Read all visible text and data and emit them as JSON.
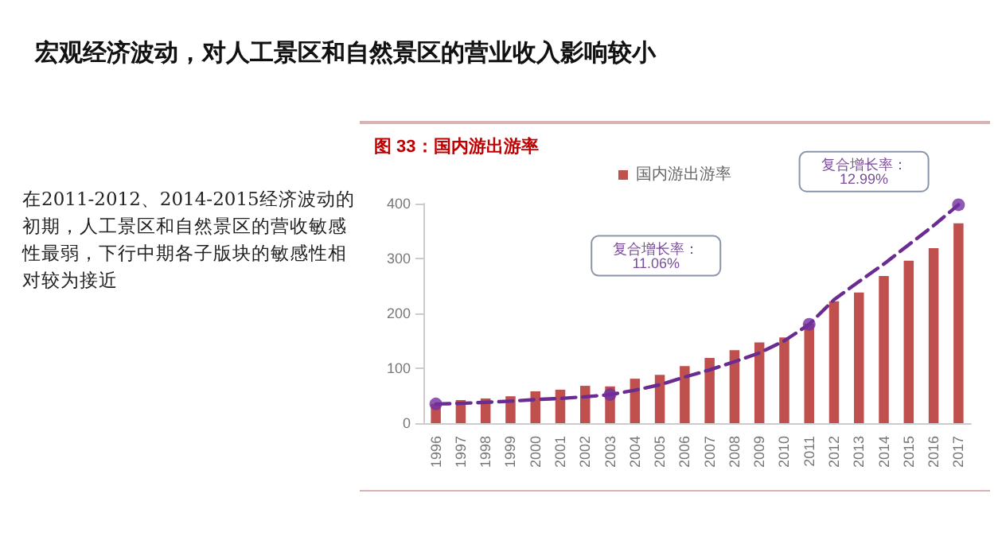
{
  "chart_data": {
    "type": "bar",
    "title": "图 33：国内游出游率",
    "annotations": [
      "宏观经济波动，对人工景区和自然景区的营业收入影响较小",
      "在2011-2012、2014-2015经济波动的初期，人工景区和自然景区的营收敏感性最弱，下行中期各子版块的敏感性相对较为接近",
      "复合增长率：11.06%",
      "复合增长率：12.99%"
    ],
    "categories": [
      "1996",
      "1997",
      "1998",
      "1999",
      "2000",
      "2001",
      "2002",
      "2003",
      "2004",
      "2005",
      "2006",
      "2007",
      "2008",
      "2009",
      "2010",
      "2011",
      "2012",
      "2013",
      "2014",
      "2015",
      "2016",
      "2017"
    ],
    "series": [
      {
        "name": "国内游出游率",
        "color": "#c0504d",
        "values": [
          35,
          42,
          45,
          49,
          58,
          61,
          68,
          67,
          81,
          88,
          104,
          119,
          133,
          147,
          156,
          181,
          222,
          238,
          268,
          296,
          319,
          364
        ]
      },
      {
        "type": "line",
        "color": "#6a2c91",
        "line_style": "dashed",
        "marker": "none",
        "values": [
          35,
          36,
          38,
          40,
          43,
          45,
          48,
          52,
          60,
          70,
          84,
          97,
          112,
          128,
          150,
          180,
          225,
          258,
          290,
          325,
          360,
          398
        ]
      },
      {
        "type": "scatter",
        "color": "#7030a0",
        "marker": "circle",
        "values": [
          35,
          null,
          null,
          null,
          null,
          null,
          null,
          52,
          null,
          null,
          null,
          null,
          null,
          null,
          null,
          180,
          null,
          null,
          null,
          null,
          null,
          398
        ]
      }
    ],
    "ylim": [
      0,
      400
    ],
    "yticks": [
      0,
      100,
      200,
      300,
      400
    ],
    "grid": false,
    "legend": "top"
  }
}
